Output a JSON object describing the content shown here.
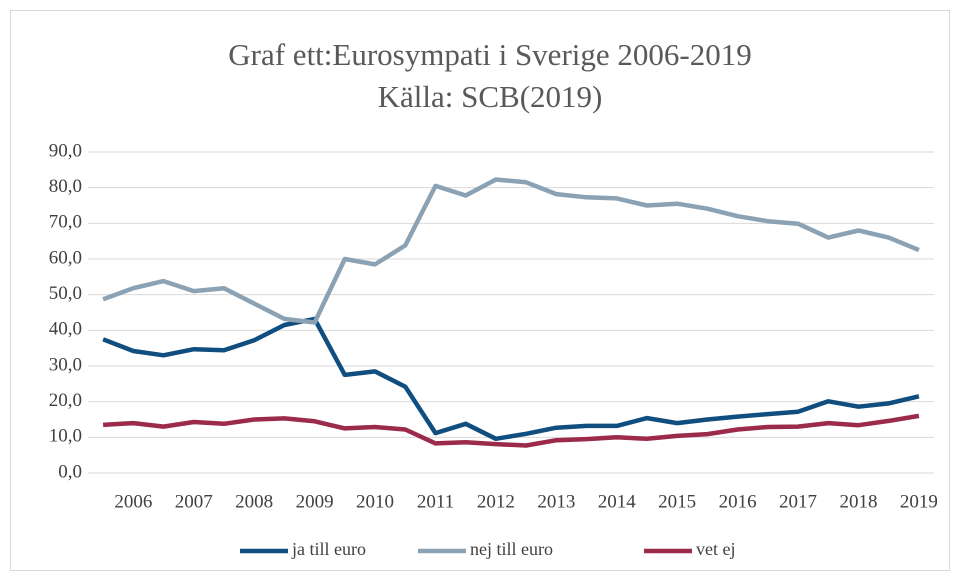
{
  "chart_data": {
    "type": "line",
    "title": "Graf ett:Eurosympati i Sverige 2006-2019",
    "subtitle": "Källa: SCB(2019)",
    "categories": [
      null,
      "2006",
      null,
      "2007",
      null,
      "2008",
      null,
      "2009",
      null,
      "2010",
      null,
      "2011",
      null,
      "2012",
      null,
      "2013",
      null,
      "2014",
      null,
      "2015",
      null,
      "2016",
      null,
      "2017",
      null,
      "2018",
      null,
      "2019"
    ],
    "series": [
      {
        "name": "ja till euro",
        "color": "#104e80",
        "values": [
          37.5,
          34.2,
          33.0,
          34.7,
          34.4,
          37.2,
          41.5,
          43.2,
          27.5,
          28.5,
          24.2,
          11.2,
          13.8,
          9.6,
          11.0,
          12.7,
          13.2,
          13.2,
          15.4,
          14.0,
          15.0,
          15.8,
          16.5,
          17.2,
          20.1,
          18.6,
          19.5,
          21.5
        ]
      },
      {
        "name": "nej till euro",
        "color": "#8aa2b4",
        "values": [
          48.7,
          51.8,
          53.8,
          51.0,
          51.8,
          47.5,
          43.2,
          42.2,
          60.0,
          58.5,
          63.8,
          80.5,
          77.8,
          82.3,
          81.5,
          78.2,
          77.3,
          77.0,
          75.0,
          75.5,
          74.1,
          72.0,
          70.6,
          69.9,
          66.0,
          68.0,
          66.0,
          62.5
        ]
      },
      {
        "name": "vet ej",
        "color": "#9b2a4b",
        "values": [
          13.5,
          14.0,
          13.0,
          14.3,
          13.8,
          15.0,
          15.3,
          14.5,
          12.5,
          12.9,
          12.2,
          8.3,
          8.6,
          8.1,
          7.7,
          9.2,
          9.5,
          10.0,
          9.6,
          10.4,
          10.9,
          12.2,
          12.9,
          13.0,
          14.0,
          13.4,
          14.6,
          16.0
        ]
      }
    ],
    "ylim": [
      0,
      90
    ],
    "yticks": [
      {
        "value": 0,
        "label": "0,0"
      },
      {
        "value": 10,
        "label": "10,0"
      },
      {
        "value": 20,
        "label": "20,0"
      },
      {
        "value": 30,
        "label": "30,0"
      },
      {
        "value": 40,
        "label": "40,0"
      },
      {
        "value": 50,
        "label": "50,0"
      },
      {
        "value": 60,
        "label": "60,0"
      },
      {
        "value": 70,
        "label": "70,0"
      },
      {
        "value": 80,
        "label": "80,0"
      },
      {
        "value": 90,
        "label": "90,0"
      }
    ],
    "grid": true,
    "legend": "bottom"
  }
}
